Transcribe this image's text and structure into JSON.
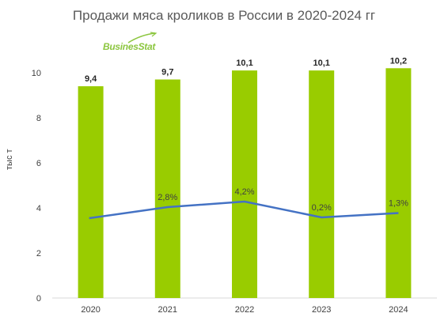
{
  "chart_data": {
    "type": "bar",
    "title": "Продажи мяса кроликов в России в 2020-2024 гг",
    "ylabel": "тыс т",
    "xlabel": "",
    "categories": [
      "2020",
      "2021",
      "2022",
      "2023",
      "2024"
    ],
    "ylim": [
      0,
      10
    ],
    "yticks": [
      "0",
      "2",
      "4",
      "6",
      "8",
      "10"
    ],
    "series": [
      {
        "type": "bar",
        "values": [
          9.4,
          9.7,
          10.1,
          10.1,
          10.2
        ],
        "labels": [
          "9,4",
          "9,7",
          "10,1",
          "10,1",
          "10,2"
        ],
        "color": "#99cc00"
      },
      {
        "type": "line",
        "values": [
          null,
          2.8,
          4.2,
          0.2,
          1.3
        ],
        "labels": [
          "",
          "2,8%",
          "4,2%",
          "0,2%",
          "1,3%"
        ],
        "color": "#4472c4",
        "secondary_axis": true
      }
    ],
    "grid": false,
    "legend": "none"
  },
  "logo": {
    "text": "BusinesStat",
    "color": "#8cc63f"
  }
}
